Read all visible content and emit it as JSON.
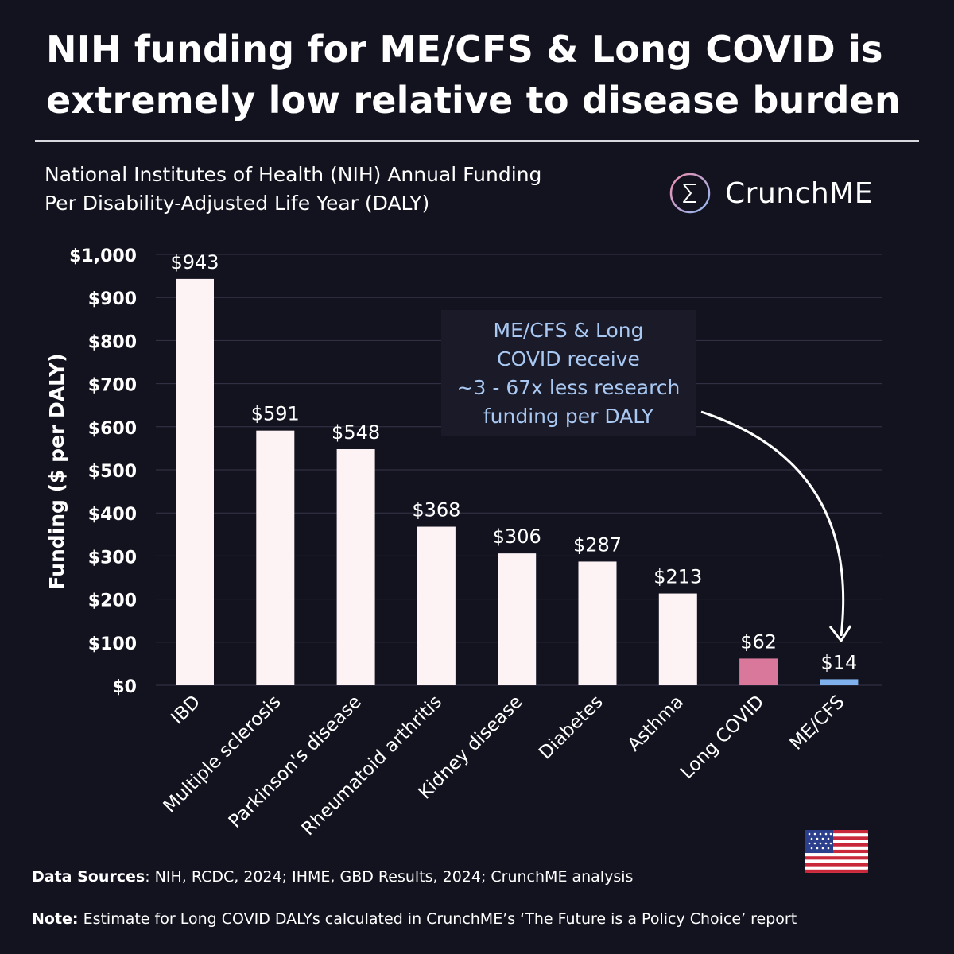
{
  "headline": {
    "line1": "NIH funding for ME/CFS & Long COVID is",
    "line2": "extremely low relative to disease burden"
  },
  "subtitle": {
    "line1": "National Institutes of Health (NIH) Annual Funding",
    "line2": "Per Disability-Adjusted Life Year (DALY)"
  },
  "brand": {
    "icon": "sigma-icon",
    "name": "CrunchME"
  },
  "annotation": {
    "lines": [
      "ME/CFS & Long",
      "COVID receive",
      "~3 - 67x less research",
      "funding per DALY"
    ],
    "color": "#a9c8f2"
  },
  "footer": {
    "sources_label": "Data Sources",
    "sources_text": ": NIH, RCDC, 2024; IHME, GBD Results, 2024; CrunchME analysis",
    "note_label": "Note:",
    "note_text": " Estimate for Long COVID DALYs calculated in CrunchME’s ‘The Future is a Policy Choice’ report"
  },
  "flag": {
    "icon": "us-flag-icon"
  },
  "colors": {
    "background": "#13131f",
    "bar_default": "#fdf3f5",
    "bar_long_covid": "#d9789a",
    "bar_mecfs": "#7fb2ec",
    "grid": "#34344a"
  },
  "chart_data": {
    "type": "bar",
    "title": "National Institutes of Health (NIH) Annual Funding Per Disability-Adjusted Life Year (DALY)",
    "xlabel": "",
    "ylabel": "Funding ($ per DALY)",
    "ylim": [
      0,
      1000
    ],
    "yticks": [
      0,
      100,
      200,
      300,
      400,
      500,
      600,
      700,
      800,
      900,
      1000
    ],
    "ytick_labels": [
      "$0",
      "$100",
      "$200",
      "$300",
      "$400",
      "$500",
      "$600",
      "$700",
      "$800",
      "$900",
      "$1,000"
    ],
    "grid": true,
    "categories": [
      "IBD",
      "Multiple sclerosis",
      "Parkinson's disease",
      "Rheumatoid arthritis",
      "Kidney disease",
      "Diabetes",
      "Asthma",
      "Long COVID",
      "ME/CFS"
    ],
    "values": [
      943,
      591,
      548,
      368,
      306,
      287,
      213,
      62,
      14
    ],
    "value_labels": [
      "$943",
      "$591",
      "$548",
      "$368",
      "$306",
      "$287",
      "$213",
      "$62",
      "$14"
    ],
    "bar_colors": [
      "#fdf3f5",
      "#fdf3f5",
      "#fdf3f5",
      "#fdf3f5",
      "#fdf3f5",
      "#fdf3f5",
      "#fdf3f5",
      "#d9789a",
      "#7fb2ec"
    ]
  }
}
